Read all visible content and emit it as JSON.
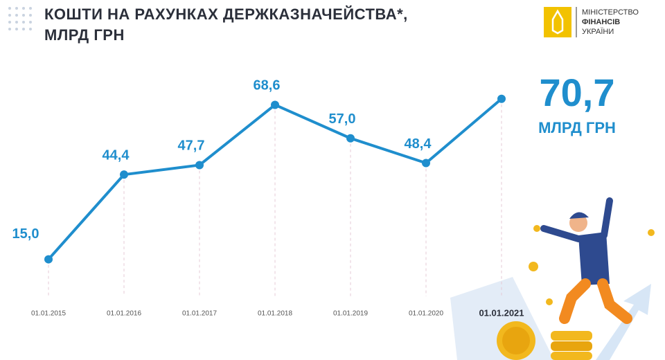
{
  "logo": [
    "МІНІСТЕРСТВО",
    "ФІНАНСІВ",
    "УКРАЇНИ"
  ],
  "chart_data": {
    "type": "line",
    "title": "КОШТИ НА РАХУНКАХ ДЕРЖКАЗНАЧЕЙСТВА*, МЛРД ГРН",
    "categories": [
      "01.01.2015",
      "01.01.2016",
      "01.01.2017",
      "01.01.2018",
      "01.01.2019",
      "01.01.2020",
      "01.01.2021"
    ],
    "values": [
      15.0,
      44.4,
      47.7,
      68.6,
      57.0,
      48.4,
      70.7
    ],
    "value_labels": [
      "15,0",
      "44,4",
      "47,7",
      "68,6",
      "57,0",
      "48,4",
      "70,7"
    ],
    "unit": "МЛРД ГРН",
    "color": "#1f8ecd",
    "ylim": [
      0,
      80
    ]
  }
}
